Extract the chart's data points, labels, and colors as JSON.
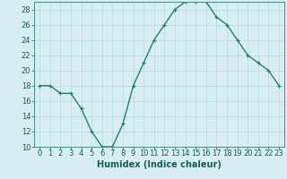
{
  "x": [
    0,
    1,
    2,
    3,
    4,
    5,
    6,
    7,
    8,
    9,
    10,
    11,
    12,
    13,
    14,
    15,
    16,
    17,
    18,
    19,
    20,
    21,
    22,
    23
  ],
  "y": [
    18,
    18,
    17,
    17,
    15,
    12,
    10,
    10,
    13,
    18,
    21,
    24,
    26,
    28,
    29,
    29,
    29,
    27,
    26,
    24,
    22,
    21,
    20,
    18
  ],
  "line_color": "#2a7b6f",
  "marker": "+",
  "bg_color": "#d6eef0",
  "grid_color": "#b8d8dc",
  "grid_color_minor": "#c8e4e8",
  "xlabel": "Humidex (Indice chaleur)",
  "ylim": [
    10,
    29
  ],
  "xlim": [
    -0.5,
    23.5
  ],
  "yticks": [
    10,
    12,
    14,
    16,
    18,
    20,
    22,
    24,
    26,
    28
  ],
  "xticks": [
    0,
    1,
    2,
    3,
    4,
    5,
    6,
    7,
    8,
    9,
    10,
    11,
    12,
    13,
    14,
    15,
    16,
    17,
    18,
    19,
    20,
    21,
    22,
    23
  ],
  "xlabel_fontsize": 7,
  "tick_fontsize": 6,
  "linewidth": 1.0,
  "marker_size": 3.5,
  "fig_width": 3.2,
  "fig_height": 2.0,
  "dpi": 100
}
